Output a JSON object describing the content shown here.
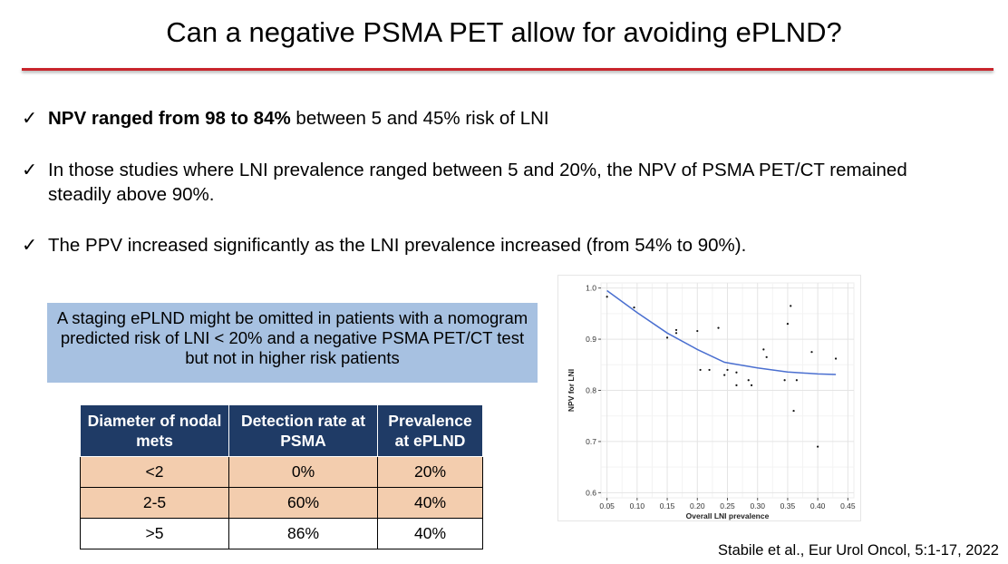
{
  "slide": {
    "title": "Can a negative PSMA PET allow for avoiding ePLND?",
    "accent_color": "#c8242b"
  },
  "bullets": [
    {
      "check": "✓",
      "bold": "NPV ranged from 98 to 84%",
      "text": " between 5 and 45% risk of LNI"
    },
    {
      "check": "✓",
      "bold": "",
      "text": "In those studies where LNI prevalence ranged between 5 and 20%, the NPV of PSMA PET/CT remained steadily above 90%."
    },
    {
      "check": "✓",
      "bold": "",
      "text": "The PPV increased significantly as the LNI prevalence increased (from 54% to 90%)."
    }
  ],
  "callout": {
    "text": "A staging ePLND might be omitted in patients with a nomogram predicted risk of LNI < 20% and a negative PSMA PET/CT test but not in higher risk patients",
    "color": "#a7c1e1"
  },
  "table": {
    "headers": [
      "Diameter of nodal mets",
      "Detection rate at PSMA",
      "Prevalence at ePLND"
    ],
    "rows": [
      [
        "<2",
        "0%",
        "20%"
      ],
      [
        "2-5",
        "60%",
        "40%"
      ],
      [
        ">5",
        "86%",
        "40%"
      ]
    ],
    "header_color": "#1f3b66",
    "shade_color": "#f3cdae"
  },
  "chart_data": {
    "type": "scatter",
    "title": "",
    "xlabel": "Overall LNI prevalence",
    "ylabel": "NPV for LNI",
    "xlim": [
      0.04,
      0.46
    ],
    "ylim": [
      0.59,
      1.01
    ],
    "xticks": [
      "0.05",
      "0.10",
      "0.15",
      "0.20",
      "0.25",
      "0.30",
      "0.35",
      "0.40",
      "0.45"
    ],
    "yticks": [
      "0.6",
      "0.7",
      "0.8",
      "0.9",
      "1.0"
    ],
    "grid": true,
    "points": [
      [
        0.05,
        0.983
      ],
      [
        0.095,
        0.962
      ],
      [
        0.15,
        0.903
      ],
      [
        0.165,
        0.918
      ],
      [
        0.165,
        0.912
      ],
      [
        0.2,
        0.916
      ],
      [
        0.205,
        0.84
      ],
      [
        0.22,
        0.84
      ],
      [
        0.235,
        0.922
      ],
      [
        0.245,
        0.83
      ],
      [
        0.25,
        0.84
      ],
      [
        0.265,
        0.81
      ],
      [
        0.265,
        0.835
      ],
      [
        0.285,
        0.82
      ],
      [
        0.29,
        0.81
      ],
      [
        0.31,
        0.88
      ],
      [
        0.315,
        0.865
      ],
      [
        0.345,
        0.82
      ],
      [
        0.35,
        0.93
      ],
      [
        0.355,
        0.965
      ],
      [
        0.36,
        0.76
      ],
      [
        0.365,
        0.82
      ],
      [
        0.39,
        0.875
      ],
      [
        0.4,
        0.69
      ],
      [
        0.43,
        0.862
      ]
    ],
    "trend": [
      [
        0.05,
        0.995
      ],
      [
        0.1,
        0.952
      ],
      [
        0.15,
        0.912
      ],
      [
        0.2,
        0.88
      ],
      [
        0.245,
        0.855
      ],
      [
        0.26,
        0.852
      ],
      [
        0.3,
        0.844
      ],
      [
        0.35,
        0.836
      ],
      [
        0.4,
        0.832
      ],
      [
        0.43,
        0.831
      ]
    ],
    "trend_color": "#4a6fd0"
  },
  "citation": "Stabile et al., Eur Urol Oncol, 5:1-17, 2022"
}
